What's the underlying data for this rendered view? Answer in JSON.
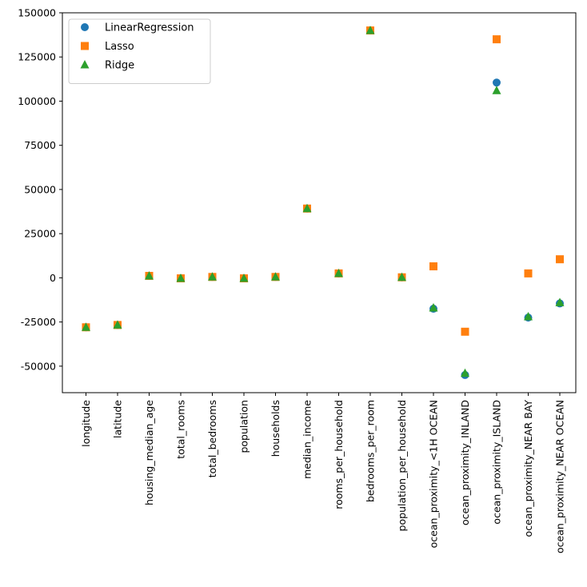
{
  "chart_data": {
    "type": "scatter",
    "title": "",
    "xlabel": "",
    "ylabel": "",
    "categories": [
      "longitude",
      "latitude",
      "housing_median_age",
      "total_rooms",
      "total_bedrooms",
      "population",
      "households",
      "median_income",
      "rooms_per_household",
      "bedrooms_per_room",
      "population_per_household",
      "ocean_proximity_<1H OCEAN",
      "ocean_proximity_INLAND",
      "ocean_proximity_ISLAND",
      "ocean_proximity_NEAR BAY",
      "ocean_proximity_NEAR OCEAN"
    ],
    "ylim": [
      -65000,
      150000
    ],
    "yticks": [
      -50000,
      -25000,
      0,
      25000,
      50000,
      75000,
      100000,
      125000,
      150000
    ],
    "grid": false,
    "legend_position": "top-left",
    "series": [
      {
        "name": "LinearRegression",
        "marker": "circle",
        "color": "#1f77b4",
        "values": [
          -28000,
          -26700,
          1100,
          -300,
          500,
          -300,
          500,
          39200,
          2500,
          140000,
          300,
          -17500,
          -55000,
          110500,
          -22500,
          -14500
        ]
      },
      {
        "name": "Lasso",
        "marker": "square",
        "color": "#ff7f0e",
        "values": [
          -28000,
          -26700,
          1100,
          -300,
          500,
          -300,
          500,
          39200,
          2500,
          140000,
          300,
          6500,
          -30500,
          135000,
          2500,
          10500
        ]
      },
      {
        "name": "Ridge",
        "marker": "triangle",
        "color": "#2ca02c",
        "values": [
          -28000,
          -26700,
          1100,
          -300,
          500,
          -300,
          500,
          39200,
          2500,
          140000,
          300,
          -17000,
          -54000,
          106000,
          -22000,
          -14000
        ]
      }
    ]
  }
}
